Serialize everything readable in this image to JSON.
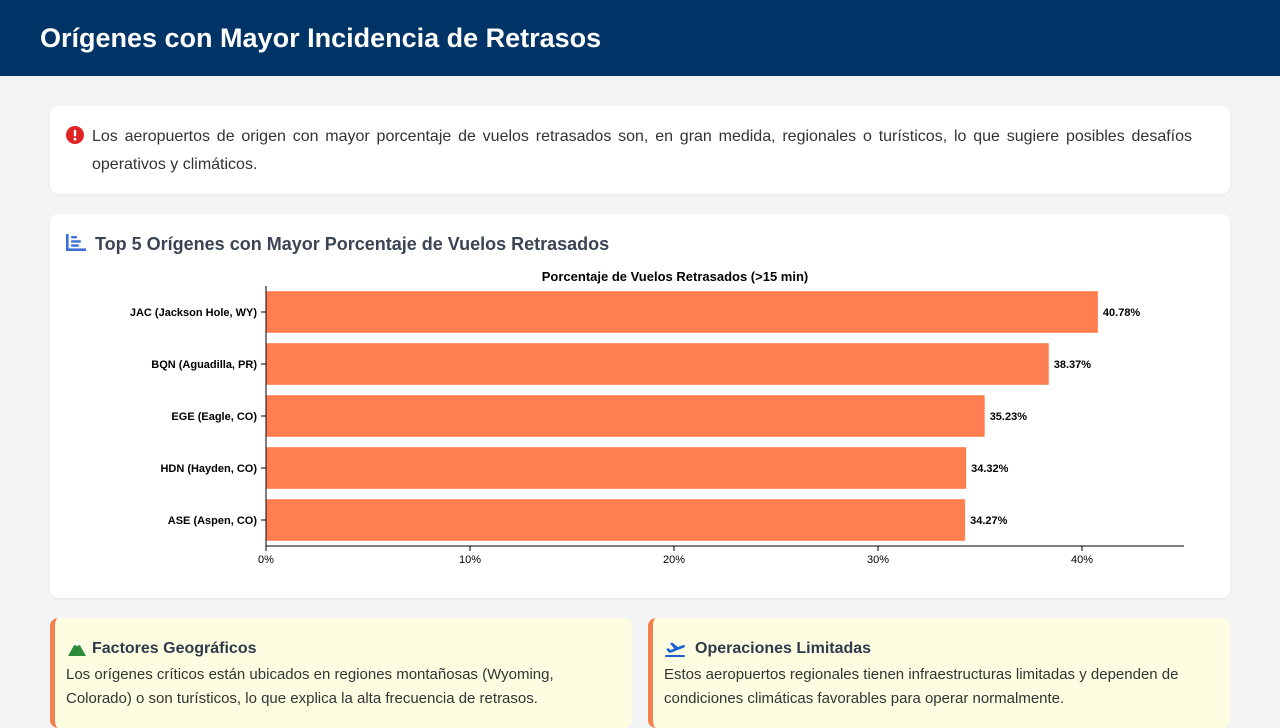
{
  "header": {
    "title": "Orígenes con Mayor Incidencia de Retrasos"
  },
  "alert": {
    "icon": "exclamation-circle-icon",
    "text": "Los aeropuertos de origen con mayor porcentaje de vuelos retrasados son, en gran medida, regionales o turísticos, lo que sugiere posibles desafíos operativos y climáticos."
  },
  "chart_card": {
    "icon": "bar-chart-icon",
    "title": "Top 5 Orígenes con Mayor Porcentaje de Vuelos Retrasados"
  },
  "chart_data": {
    "type": "bar",
    "orientation": "horizontal",
    "title": "Porcentaje de Vuelos Retrasados (>15 min)",
    "categories": [
      "JAC (Jackson Hole, WY)",
      "BQN (Aguadilla, PR)",
      "EGE (Eagle, CO)",
      "HDN (Hayden, CO)",
      "ASE (Aspen, CO)"
    ],
    "values": [
      40.78,
      38.37,
      35.23,
      34.32,
      34.27
    ],
    "value_labels": [
      "40.78%",
      "38.37%",
      "35.23%",
      "34.32%",
      "34.27%"
    ],
    "xlim": [
      0,
      45
    ],
    "xticks": [
      0,
      10,
      20,
      30,
      40
    ],
    "xtick_labels": [
      "0%",
      "10%",
      "20%",
      "30%",
      "40%"
    ],
    "xlabel": "",
    "ylabel": "",
    "grid": false,
    "bar_color": "#ff7f50"
  },
  "cards": [
    {
      "icon": "mountain-icon",
      "title": "Factores Geográficos",
      "text": "Los orígenes críticos están ubicados en regiones montañosas (Wyoming, Colorado) o son turísticos, lo que explica la alta frecuencia de retrasos."
    },
    {
      "icon": "plane-departure-icon",
      "title": "Operaciones Limitadas",
      "text": "Estos aeropuertos regionales tienen infraestructuras limitadas y dependen de condiciones climáticas favorables para operar normalmente."
    }
  ],
  "colors": {
    "header_bg": "#003366",
    "accent": "#f47f4f",
    "alert_icon": "#e02424",
    "chart_icon": "#3b6fd6",
    "mountain_icon": "#2e8b3a",
    "plane_icon": "#1e63d6",
    "info_card_bg": "#fdfde2"
  }
}
